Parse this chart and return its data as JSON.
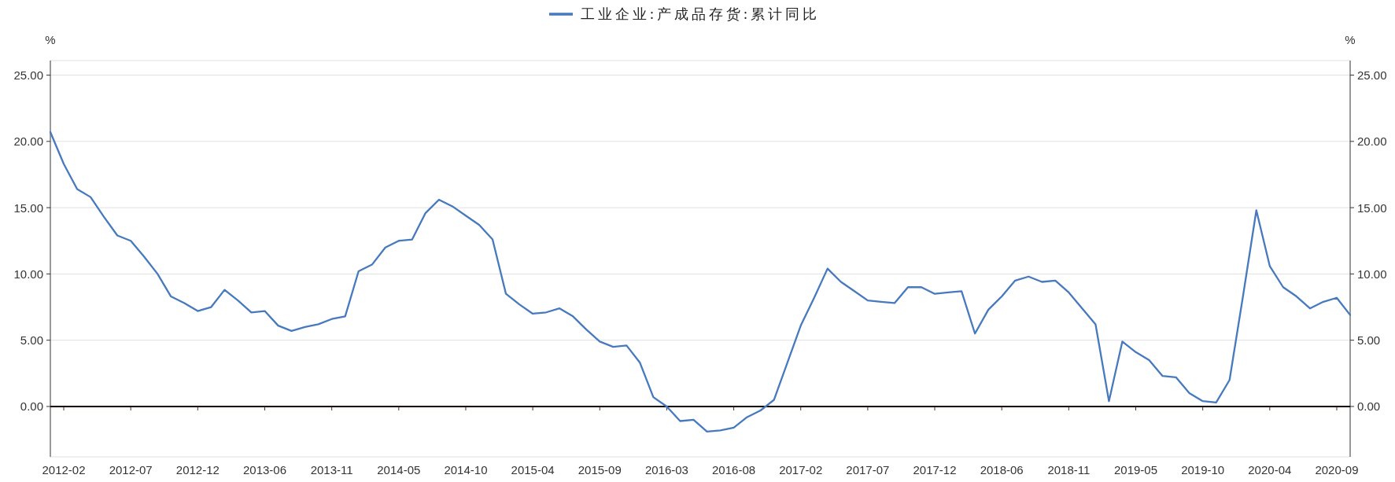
{
  "chart_data": {
    "type": "line",
    "ylabel": "%",
    "y2label": "%",
    "categories": [
      null,
      "2012-02",
      null,
      null,
      null,
      null,
      "2012-07",
      null,
      null,
      null,
      null,
      "2012-12",
      null,
      null,
      null,
      null,
      "2013-06",
      null,
      null,
      null,
      null,
      "2013-11",
      null,
      null,
      null,
      null,
      "2014-05",
      null,
      null,
      null,
      null,
      "2014-10",
      null,
      null,
      null,
      null,
      "2015-04",
      null,
      null,
      null,
      null,
      "2015-09",
      null,
      null,
      null,
      null,
      "2016-03",
      null,
      null,
      null,
      null,
      "2016-08",
      null,
      null,
      null,
      null,
      "2017-02",
      null,
      null,
      null,
      null,
      "2017-07",
      null,
      null,
      null,
      null,
      "2017-12",
      null,
      null,
      null,
      null,
      "2018-06",
      null,
      null,
      null,
      null,
      "2018-11",
      null,
      null,
      null,
      null,
      "2019-05",
      null,
      null,
      null,
      null,
      "2019-10",
      null,
      null,
      null,
      null,
      "2020-04",
      null,
      null,
      null,
      null,
      "2020-09",
      null
    ],
    "series": [
      {
        "name": "工业企业:产成品存货:累计同比",
        "color": "#4679bd",
        "values": [
          20.7,
          18.3,
          16.4,
          15.8,
          14.3,
          12.9,
          12.5,
          11.3,
          10.0,
          8.3,
          7.8,
          7.2,
          7.5,
          8.8,
          8.0,
          7.1,
          7.2,
          6.1,
          5.7,
          6.0,
          6.2,
          6.6,
          6.8,
          10.2,
          10.7,
          12.0,
          12.5,
          12.6,
          14.6,
          15.6,
          15.1,
          14.4,
          13.7,
          12.6,
          8.5,
          7.7,
          7.0,
          7.1,
          7.4,
          6.8,
          5.8,
          4.9,
          4.5,
          4.6,
          3.3,
          0.7,
          0.0,
          -1.1,
          -1.0,
          -1.9,
          -1.8,
          -1.6,
          -0.8,
          -0.3,
          0.5,
          3.3,
          6.1,
          8.2,
          10.4,
          9.4,
          8.7,
          8.0,
          7.9,
          7.8,
          9.0,
          9.0,
          8.5,
          8.6,
          8.7,
          5.5,
          7.3,
          8.3,
          9.5,
          9.8,
          9.4,
          9.5,
          8.6,
          7.4,
          6.2,
          0.4,
          4.9,
          4.1,
          3.5,
          2.3,
          2.2,
          1.0,
          0.4,
          0.3,
          2.0,
          8.3,
          14.8,
          10.6,
          9.0,
          8.3,
          7.4,
          7.9,
          8.2,
          6.9
        ]
      }
    ],
    "ylim": [
      -3.8,
      26.1
    ],
    "yticks": [
      {
        "value": 0,
        "label": "0.00"
      },
      {
        "value": 5,
        "label": "5.00"
      },
      {
        "value": 10,
        "label": "10.00"
      },
      {
        "value": 15,
        "label": "15.00"
      },
      {
        "value": 20,
        "label": "20.00"
      },
      {
        "value": 25,
        "label": "25.00"
      }
    ],
    "y2lim": [
      -3.8,
      26.1
    ],
    "y2ticks": [
      {
        "value": 0,
        "label": "0.00"
      },
      {
        "value": 5,
        "label": "5.00"
      },
      {
        "value": 10,
        "label": "10.00"
      },
      {
        "value": 15,
        "label": "15.00"
      },
      {
        "value": 20,
        "label": "20.00"
      },
      {
        "value": 25,
        "label": "25.00"
      }
    ],
    "grid": "y",
    "legend": "top"
  }
}
